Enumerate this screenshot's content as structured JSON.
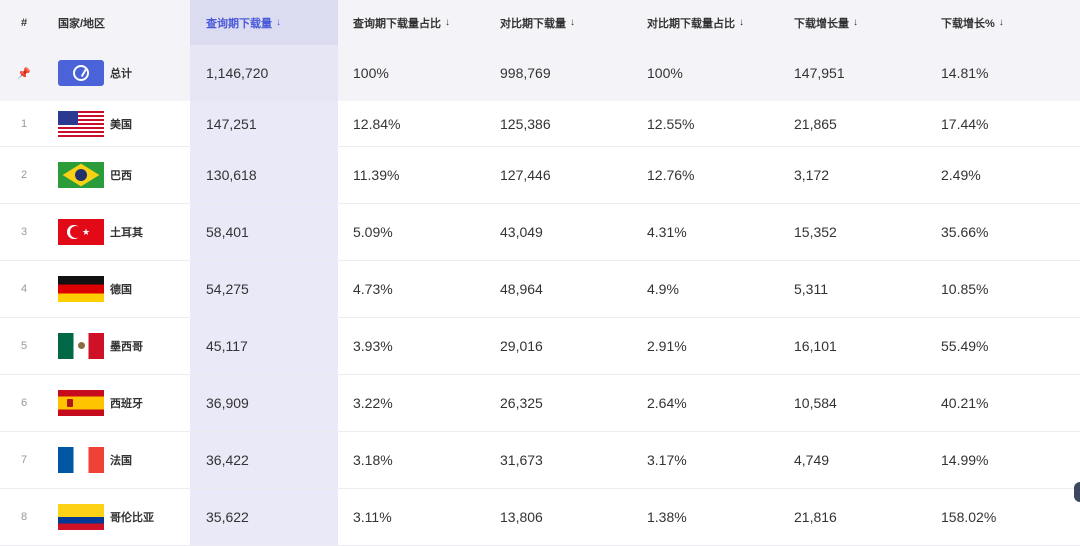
{
  "header": {
    "index": "#",
    "country": "国家/地区",
    "query_downloads": "查询期下载量",
    "query_share": "查询期下载量占比",
    "compare_downloads": "对比期下载量",
    "compare_share": "对比期下载量占比",
    "growth": "下载增长量",
    "growth_pct": "下载增长%",
    "sort_arrow": "↓"
  },
  "total": {
    "index": "📌",
    "name": "总计",
    "flag": "globe-icon",
    "query_downloads": "1,146,720",
    "query_share": "100%",
    "compare_downloads": "998,769",
    "compare_share": "100%",
    "growth": "147,951",
    "growth_pct": "14.81%"
  },
  "rows": [
    {
      "index": "1",
      "name": "美国",
      "flag": "us",
      "query_downloads": "147,251",
      "query_share": "12.84%",
      "compare_downloads": "125,386",
      "compare_share": "12.55%",
      "growth": "21,865",
      "growth_pct": "17.44%"
    },
    {
      "index": "2",
      "name": "巴西",
      "flag": "br",
      "query_downloads": "130,618",
      "query_share": "11.39%",
      "compare_downloads": "127,446",
      "compare_share": "12.76%",
      "growth": "3,172",
      "growth_pct": "2.49%"
    },
    {
      "index": "3",
      "name": "土耳其",
      "flag": "tr",
      "query_downloads": "58,401",
      "query_share": "5.09%",
      "compare_downloads": "43,049",
      "compare_share": "4.31%",
      "growth": "15,352",
      "growth_pct": "35.66%"
    },
    {
      "index": "4",
      "name": "德国",
      "flag": "de",
      "query_downloads": "54,275",
      "query_share": "4.73%",
      "compare_downloads": "48,964",
      "compare_share": "4.9%",
      "growth": "5,311",
      "growth_pct": "10.85%"
    },
    {
      "index": "5",
      "name": "墨西哥",
      "flag": "mx",
      "query_downloads": "45,117",
      "query_share": "3.93%",
      "compare_downloads": "29,016",
      "compare_share": "2.91%",
      "growth": "16,101",
      "growth_pct": "55.49%"
    },
    {
      "index": "6",
      "name": "西班牙",
      "flag": "es",
      "query_downloads": "36,909",
      "query_share": "3.22%",
      "compare_downloads": "26,325",
      "compare_share": "2.64%",
      "growth": "10,584",
      "growth_pct": "40.21%"
    },
    {
      "index": "7",
      "name": "法国",
      "flag": "fr",
      "query_downloads": "36,422",
      "query_share": "3.18%",
      "compare_downloads": "31,673",
      "compare_share": "3.17%",
      "growth": "4,749",
      "growth_pct": "14.99%"
    },
    {
      "index": "8",
      "name": "哥伦比亚",
      "flag": "co",
      "query_downloads": "35,622",
      "query_share": "3.11%",
      "compare_downloads": "13,806",
      "compare_share": "1.38%",
      "growth": "21,816",
      "growth_pct": "158.02%"
    }
  ],
  "colors": {
    "accent": "#4a5bd8",
    "highlight_column": "#e9e9f7",
    "header_bg": "#f4f4f8"
  }
}
